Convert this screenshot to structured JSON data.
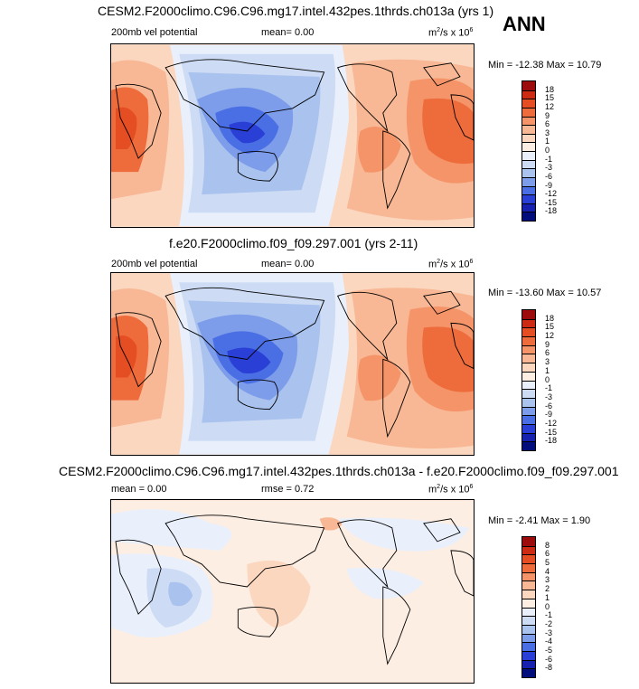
{
  "season": "ANN",
  "units": {
    "base": "m",
    "exp1": "2",
    "mid": "/s x 10",
    "exp2": "6"
  },
  "panels": [
    {
      "title": "CESM2.F2000climo.C96.C96.mg17.intel.432pes.1thrds.ch013a (yrs 1)",
      "left_label": "200mb vel potential",
      "center_label": "mean=   0.00",
      "minmax": "Min = -12.38 Max =  10.79",
      "levels": [
        "18",
        "15",
        "12",
        "9",
        "6",
        "3",
        "1",
        "0",
        "-1",
        "-3",
        "-6",
        "-9",
        "-12",
        "-15",
        "-18"
      ],
      "colors": [
        "#9c0c0c",
        "#cd2a13",
        "#e54d22",
        "#ee6c3c",
        "#f59468",
        "#f8b895",
        "#fbd7c0",
        "#fdeee3",
        "#e9f0fb",
        "#cddcf4",
        "#a9c2ee",
        "#7d9cea",
        "#4a6fe4",
        "#2a3fd6",
        "#1721b0",
        "#000d7a"
      ],
      "map_type": "velocity"
    },
    {
      "title": "f.e20.F2000climo.f09_f09.297.001 (yrs 2-11)",
      "left_label": "200mb vel potential",
      "center_label": "mean=   0.00",
      "minmax": "Min = -13.60 Max =  10.57",
      "levels": [
        "18",
        "15",
        "12",
        "9",
        "6",
        "3",
        "1",
        "0",
        "-1",
        "-3",
        "-6",
        "-9",
        "-12",
        "-15",
        "-18"
      ],
      "colors": [
        "#9c0c0c",
        "#cd2a13",
        "#e54d22",
        "#ee6c3c",
        "#f59468",
        "#f8b895",
        "#fbd7c0",
        "#fdeee3",
        "#e9f0fb",
        "#cddcf4",
        "#a9c2ee",
        "#7d9cea",
        "#4a6fe4",
        "#2a3fd6",
        "#1721b0",
        "#000d7a"
      ],
      "map_type": "velocity"
    },
    {
      "title": "CESM2.F2000climo.C96.C96.mg17.intel.432pes.1thrds.ch013a - f.e20.F2000climo.f09_f09.297.001",
      "left_label": "mean =   0.00",
      "center_label": "rmse =   0.72",
      "minmax": "Min =  -2.41 Max =   1.90",
      "levels": [
        "8",
        "6",
        "5",
        "4",
        "3",
        "2",
        "1",
        "0",
        "-1",
        "-2",
        "-3",
        "-4",
        "-5",
        "-6",
        "-8"
      ],
      "colors": [
        "#9c0c0c",
        "#cd2a13",
        "#e54d22",
        "#ee6c3c",
        "#f59468",
        "#f8b895",
        "#fbd7c0",
        "#fdeee3",
        "#e9f0fb",
        "#cddcf4",
        "#a9c2ee",
        "#7d9cea",
        "#4a6fe4",
        "#2a3fd6",
        "#1721b0",
        "#000d7a"
      ],
      "map_type": "difference"
    }
  ]
}
